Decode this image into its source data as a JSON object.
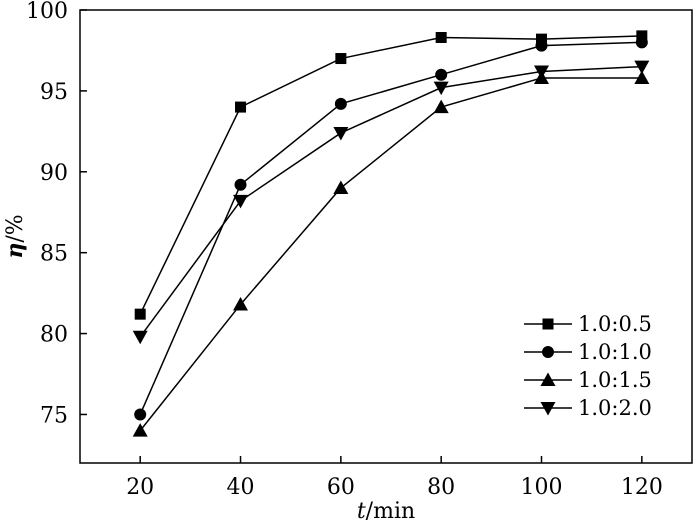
{
  "chart_data": {
    "type": "line",
    "title": "",
    "xlabel_var": "t",
    "xlabel_unit": "/min",
    "ylabel_var": "η",
    "ylabel_unit": "/%",
    "x": [
      20,
      40,
      60,
      80,
      100,
      120
    ],
    "xlim": [
      8,
      130
    ],
    "ylim": [
      72,
      100
    ],
    "xticks": [
      20,
      40,
      60,
      80,
      100,
      120
    ],
    "yticks": [
      75,
      80,
      85,
      90,
      95,
      100
    ],
    "grid": false,
    "legend_position": "bottom-right",
    "series": [
      {
        "name": "1.0:0.5",
        "marker": "square",
        "values": [
          81.2,
          94.0,
          97.0,
          98.3,
          98.2,
          98.4
        ]
      },
      {
        "name": "1.0:1.0",
        "marker": "circle",
        "values": [
          75.0,
          89.2,
          94.2,
          96.0,
          97.8,
          98.0
        ]
      },
      {
        "name": "1.0:1.5",
        "marker": "triangle-up",
        "values": [
          74.0,
          81.8,
          89.0,
          94.0,
          95.8,
          95.8
        ]
      },
      {
        "name": "1.0:2.0",
        "marker": "triangle-down",
        "values": [
          79.8,
          88.2,
          92.4,
          95.2,
          96.2,
          96.5
        ]
      }
    ]
  }
}
